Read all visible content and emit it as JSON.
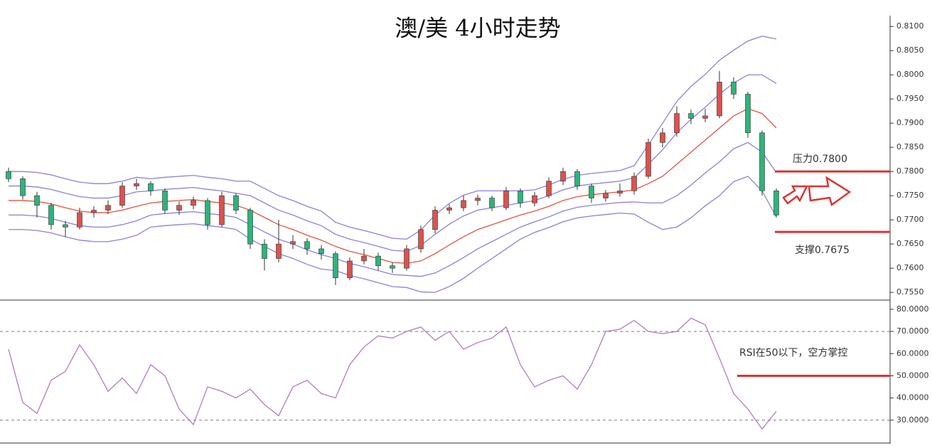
{
  "chart_data": [
    {
      "type": "candlestick",
      "title": "澳/美 4小时走势",
      "open": [
        0.78,
        0.7785,
        0.775,
        0.773,
        0.769,
        0.7685,
        0.7715,
        0.772,
        0.773,
        0.777,
        0.7775,
        0.776,
        0.772,
        0.773,
        0.774,
        0.769,
        0.775,
        0.772,
        0.765,
        0.762,
        0.765,
        0.7655,
        0.764,
        0.763,
        0.758,
        0.7615,
        0.7625,
        0.7605,
        0.76,
        0.764,
        0.768,
        0.772,
        0.7725,
        0.774,
        0.7745,
        0.7725,
        0.776,
        0.7735,
        0.775,
        0.778,
        0.78,
        0.777,
        0.7745,
        0.7755,
        0.776,
        0.779,
        0.786,
        0.788,
        0.792,
        0.791,
        0.7915,
        0.7985,
        0.796,
        0.788,
        0.776
      ],
      "high": [
        0.7808,
        0.779,
        0.7758,
        0.7735,
        0.7698,
        0.7725,
        0.7728,
        0.774,
        0.7778,
        0.7785,
        0.778,
        0.7765,
        0.7738,
        0.7748,
        0.7745,
        0.7758,
        0.7755,
        0.7725,
        0.766,
        0.77,
        0.7668,
        0.7662,
        0.7648,
        0.7635,
        0.7622,
        0.764,
        0.7632,
        0.7612,
        0.7648,
        0.7688,
        0.7728,
        0.7732,
        0.775,
        0.7752,
        0.775,
        0.7768,
        0.7765,
        0.7758,
        0.7788,
        0.7808,
        0.7805,
        0.7775,
        0.7762,
        0.7775,
        0.7798,
        0.7868,
        0.789,
        0.7935,
        0.7928,
        0.793,
        0.8008,
        0.7995,
        0.7965,
        0.7885,
        0.7765
      ],
      "low": [
        0.7778,
        0.7742,
        0.7705,
        0.768,
        0.7665,
        0.768,
        0.7705,
        0.7712,
        0.7725,
        0.7762,
        0.775,
        0.7712,
        0.771,
        0.7722,
        0.768,
        0.7685,
        0.7712,
        0.764,
        0.7595,
        0.7612,
        0.764,
        0.7628,
        0.7618,
        0.7565,
        0.7575,
        0.7608,
        0.7595,
        0.759,
        0.7595,
        0.7632,
        0.7672,
        0.7712,
        0.7718,
        0.773,
        0.7718,
        0.772,
        0.7725,
        0.7728,
        0.7745,
        0.7772,
        0.7762,
        0.7735,
        0.7738,
        0.7748,
        0.7752,
        0.7785,
        0.785,
        0.7872,
        0.7898,
        0.7902,
        0.791,
        0.795,
        0.787,
        0.775,
        0.7705
      ],
      "close": [
        0.7785,
        0.775,
        0.773,
        0.769,
        0.7685,
        0.7715,
        0.772,
        0.773,
        0.777,
        0.7775,
        0.776,
        0.772,
        0.773,
        0.774,
        0.769,
        0.775,
        0.772,
        0.765,
        0.762,
        0.765,
        0.7655,
        0.764,
        0.763,
        0.758,
        0.7615,
        0.7625,
        0.7605,
        0.76,
        0.764,
        0.768,
        0.772,
        0.7725,
        0.774,
        0.7745,
        0.7725,
        0.776,
        0.7735,
        0.775,
        0.778,
        0.78,
        0.777,
        0.7745,
        0.7755,
        0.776,
        0.779,
        0.786,
        0.788,
        0.792,
        0.791,
        0.7915,
        0.7985,
        0.796,
        0.788,
        0.776,
        0.771
      ],
      "up_color": "#d9534f",
      "down_color": "#2fb37a",
      "bands": [
        {
          "color": "#e0553f",
          "values": [
            0.774,
            0.774,
            0.7738,
            0.7733,
            0.7725,
            0.7718,
            0.7715,
            0.7715,
            0.772,
            0.7728,
            0.7735,
            0.7738,
            0.774,
            0.7742,
            0.7738,
            0.7735,
            0.773,
            0.772,
            0.7705,
            0.769,
            0.768,
            0.7668,
            0.7658,
            0.7645,
            0.7635,
            0.7628,
            0.762,
            0.7612,
            0.761,
            0.7615,
            0.763,
            0.7648,
            0.7665,
            0.768,
            0.769,
            0.77,
            0.771,
            0.7718,
            0.7728,
            0.774,
            0.7748,
            0.7752,
            0.7755,
            0.7758,
            0.7762,
            0.7775,
            0.779,
            0.7815,
            0.784,
            0.7865,
            0.789,
            0.7915,
            0.793,
            0.792,
            0.789
          ]
        },
        {
          "color": "#8b80e0",
          "values": [
            0.777,
            0.777,
            0.7768,
            0.7763,
            0.7755,
            0.7748,
            0.7745,
            0.7745,
            0.775,
            0.7758,
            0.776,
            0.7763,
            0.7765,
            0.7767,
            0.7763,
            0.776,
            0.7755,
            0.775,
            0.7735,
            0.772,
            0.771,
            0.7698,
            0.7688,
            0.767,
            0.766,
            0.7653,
            0.7645,
            0.7637,
            0.7635,
            0.7647,
            0.767,
            0.7691,
            0.7708,
            0.772,
            0.7725,
            0.773,
            0.7735,
            0.774,
            0.775,
            0.7762,
            0.777,
            0.7774,
            0.7777,
            0.778,
            0.7787,
            0.7815,
            0.7845,
            0.788,
            0.7908,
            0.7933,
            0.796,
            0.7983,
            0.8,
            0.8,
            0.7982
          ]
        },
        {
          "color": "#8b80e0",
          "values": [
            0.78,
            0.78,
            0.7798,
            0.7793,
            0.7785,
            0.7778,
            0.7775,
            0.7775,
            0.778,
            0.7788,
            0.7785,
            0.7788,
            0.779,
            0.7792,
            0.7788,
            0.7785,
            0.778,
            0.778,
            0.7765,
            0.775,
            0.774,
            0.7728,
            0.7718,
            0.7695,
            0.7685,
            0.7678,
            0.767,
            0.7662,
            0.766,
            0.7679,
            0.771,
            0.7734,
            0.7751,
            0.776,
            0.776,
            0.776,
            0.776,
            0.7762,
            0.7772,
            0.7784,
            0.7792,
            0.7796,
            0.7799,
            0.7802,
            0.7812,
            0.7855,
            0.79,
            0.7945,
            0.7976,
            0.8001,
            0.803,
            0.8051,
            0.807,
            0.808,
            0.8074
          ]
        },
        {
          "color": "#8b80e0",
          "values": [
            0.771,
            0.771,
            0.7708,
            0.7703,
            0.7695,
            0.7688,
            0.7685,
            0.7685,
            0.769,
            0.7698,
            0.771,
            0.7713,
            0.7715,
            0.7717,
            0.7713,
            0.771,
            0.7705,
            0.769,
            0.7675,
            0.766,
            0.765,
            0.7638,
            0.7628,
            0.762,
            0.761,
            0.7603,
            0.7595,
            0.7587,
            0.7585,
            0.7583,
            0.759,
            0.7605,
            0.7622,
            0.764,
            0.7655,
            0.767,
            0.7685,
            0.7696,
            0.7706,
            0.7718,
            0.7726,
            0.773,
            0.7733,
            0.7736,
            0.7737,
            0.7735,
            0.7735,
            0.775,
            0.7772,
            0.7797,
            0.782,
            0.7847,
            0.786,
            0.784,
            0.7798
          ]
        },
        {
          "color": "#8b80e0",
          "values": [
            0.768,
            0.768,
            0.7678,
            0.7673,
            0.7665,
            0.7658,
            0.7655,
            0.7655,
            0.766,
            0.7668,
            0.7685,
            0.7688,
            0.769,
            0.7692,
            0.7688,
            0.7685,
            0.768,
            0.766,
            0.7645,
            0.763,
            0.762,
            0.7608,
            0.7598,
            0.7595,
            0.7585,
            0.7578,
            0.757,
            0.7562,
            0.756,
            0.7551,
            0.755,
            0.7562,
            0.7579,
            0.76,
            0.762,
            0.764,
            0.766,
            0.7674,
            0.7684,
            0.7696,
            0.7704,
            0.7708,
            0.7711,
            0.7714,
            0.7712,
            0.7695,
            0.768,
            0.7685,
            0.7704,
            0.7729,
            0.775,
            0.7779,
            0.779,
            0.776,
            0.7706
          ]
        }
      ],
      "ylim": [
        0.7534,
        0.8118
      ],
      "yticks": [
        {
          "value": 0.81,
          "label": "0.8100"
        },
        {
          "value": 0.805,
          "label": "0.8050"
        },
        {
          "value": 0.8,
          "label": "0.8000"
        },
        {
          "value": 0.795,
          "label": "0.7950"
        },
        {
          "value": 0.79,
          "label": "0.7900"
        },
        {
          "value": 0.785,
          "label": "0.7850"
        },
        {
          "value": 0.78,
          "label": "0.7800"
        },
        {
          "value": 0.775,
          "label": "0.7750"
        },
        {
          "value": 0.77,
          "label": "0.7700"
        },
        {
          "value": 0.765,
          "label": "0.7650"
        },
        {
          "value": 0.76,
          "label": "0.7600"
        },
        {
          "value": 0.755,
          "label": "0.7550"
        }
      ],
      "annotations": [
        {
          "text": "压力0.7800",
          "value": 0.78,
          "color": "#e03131"
        },
        {
          "text": "支撑0.7675",
          "value": 0.7675,
          "color": "#e03131"
        }
      ]
    },
    {
      "type": "line",
      "color": "#b07cc6",
      "values": [
        62,
        38,
        33,
        48,
        52,
        64,
        55,
        43,
        49,
        42,
        55,
        50,
        35,
        28,
        45,
        43,
        40,
        44,
        37,
        32,
        45,
        48,
        42,
        40,
        55,
        63,
        68,
        67,
        70,
        72,
        66,
        70,
        62,
        65,
        67,
        72,
        55,
        45,
        48,
        50,
        44,
        55,
        70,
        71,
        75,
        70,
        69,
        70,
        76,
        73,
        58,
        42,
        35,
        26,
        34
      ],
      "ylim": [
        20,
        83.5
      ],
      "yticks": [
        {
          "value": 80,
          "label": "80.0000"
        },
        {
          "value": 70,
          "label": "70.0000"
        },
        {
          "value": 60,
          "label": "60.0000"
        },
        {
          "value": 50,
          "label": "50.0000"
        },
        {
          "value": 40,
          "label": "40.0000"
        },
        {
          "value": 30,
          "label": "30.0000"
        }
      ],
      "dashed_levels": [
        70,
        30
      ],
      "annotation": {
        "text": "RSI在50以下，空方掌控",
        "value": 50,
        "color": "#e03131"
      }
    }
  ]
}
